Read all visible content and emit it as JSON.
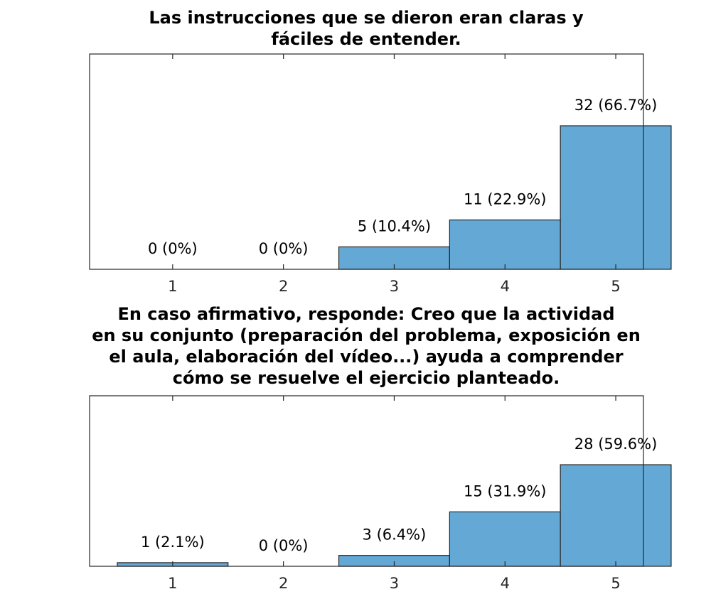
{
  "chart_data": [
    {
      "type": "bar",
      "title": [
        "Las instrucciones que se dieron eran claras y",
        "fáciles de entender."
      ],
      "categories": [
        "1",
        "2",
        "3",
        "4",
        "5"
      ],
      "values": [
        0,
        0,
        5,
        11,
        32
      ],
      "data_labels": [
        "0 (0%)",
        "0 (0%)",
        "5 (10.4%)",
        "11 (22.9%)",
        "32 (66.7%)"
      ],
      "xlabel": "",
      "ylabel": "",
      "ylim": [
        0,
        48
      ],
      "grid": false
    },
    {
      "type": "bar",
      "title": [
        "En caso afirmativo, responde: Creo que la actividad",
        "en su conjunto (preparación del problema, exposición en",
        "el aula, elaboración del vídeo...) ayuda a comprender",
        "cómo se resuelve el ejercicio planteado."
      ],
      "categories": [
        "1",
        "2",
        "3",
        "4",
        "5"
      ],
      "values": [
        1,
        0,
        3,
        15,
        28
      ],
      "data_labels": [
        "1 (2.1%)",
        "0 (0%)",
        "3 (6.4%)",
        "15 (31.9%)",
        "28 (59.6%)"
      ],
      "xlabel": "",
      "ylabel": "",
      "ylim": [
        0,
        47
      ],
      "grid": false
    }
  ],
  "style": {
    "bar_color": "#64a8d6",
    "edge_color": "#262626"
  }
}
